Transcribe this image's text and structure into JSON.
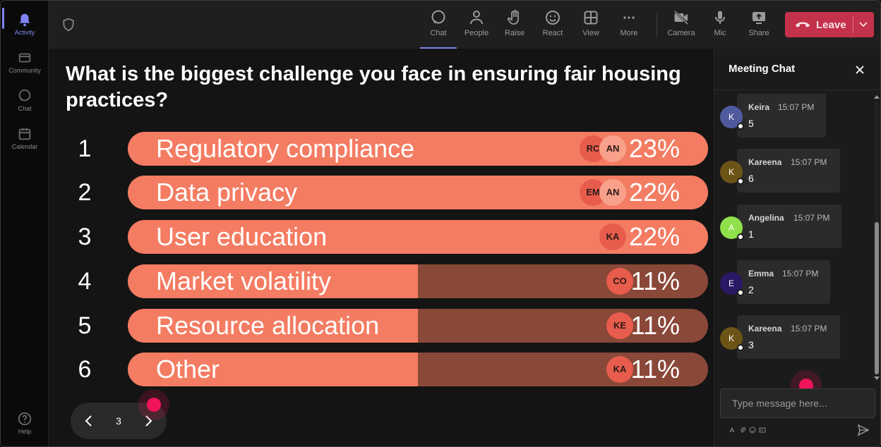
{
  "rail": {
    "items": [
      {
        "label": "Activity",
        "icon": "bell-icon",
        "active": true
      },
      {
        "label": "Community",
        "icon": "community-icon",
        "active": false
      },
      {
        "label": "Chat",
        "icon": "chat-icon",
        "active": false
      },
      {
        "label": "Calendar",
        "icon": "calendar-icon",
        "active": false
      }
    ],
    "help_label": "Help"
  },
  "toolbar": {
    "chat": "Chat",
    "people": "People",
    "raise": "Raise",
    "react": "React",
    "view": "View",
    "more": "More",
    "camera": "Camera",
    "mic": "Mic",
    "share": "Share",
    "leave": "Leave"
  },
  "poll": {
    "question": "What is the biggest challenge you face in ensuring fair housing practices?",
    "options": [
      {
        "num": "1",
        "label": "Regulatory compliance",
        "percent": "23%",
        "fill": 1.0,
        "avatars": [
          "RC",
          "AN"
        ]
      },
      {
        "num": "2",
        "label": "Data privacy",
        "percent": "22%",
        "fill": 1.0,
        "avatars": [
          "EM",
          "AN"
        ]
      },
      {
        "num": "3",
        "label": "User education",
        "percent": "22%",
        "fill": 1.0,
        "avatars": [
          "KA"
        ]
      },
      {
        "num": "4",
        "label": "Market volatility",
        "percent": "11%",
        "fill": 0.5,
        "avatars": [
          "CO"
        ]
      },
      {
        "num": "5",
        "label": "Resource allocation",
        "percent": "11%",
        "fill": 0.5,
        "avatars": [
          "KE"
        ]
      },
      {
        "num": "6",
        "label": "Other",
        "percent": "11%",
        "fill": 0.5,
        "avatars": [
          "KA"
        ]
      }
    ],
    "page": "3"
  },
  "chat": {
    "title": "Meeting Chat",
    "messages": [
      {
        "initial": "K",
        "name": "Keira",
        "time": "15:07 PM",
        "body": "5",
        "color": "#4f5a9e"
      },
      {
        "initial": "K",
        "name": "Kareena",
        "time": "15:07 PM",
        "body": "6",
        "color": "#6b5416"
      },
      {
        "initial": "A",
        "name": "Angelina",
        "time": "15:07 PM",
        "body": "1",
        "color": "#8fe04a"
      },
      {
        "initial": "E",
        "name": "Emma",
        "time": "15:07 PM",
        "body": "2",
        "color": "#2a1866"
      },
      {
        "initial": "K",
        "name": "Kareena",
        "time": "15:07 PM",
        "body": "3",
        "color": "#6b5416"
      }
    ],
    "placeholder": "Type message here..."
  },
  "colors": {
    "accent": "#7f85f5",
    "bar_fill": "#f47c62",
    "bar_track": "#8a4838",
    "leave": "#c4314b",
    "cursor": "#f0145a"
  }
}
